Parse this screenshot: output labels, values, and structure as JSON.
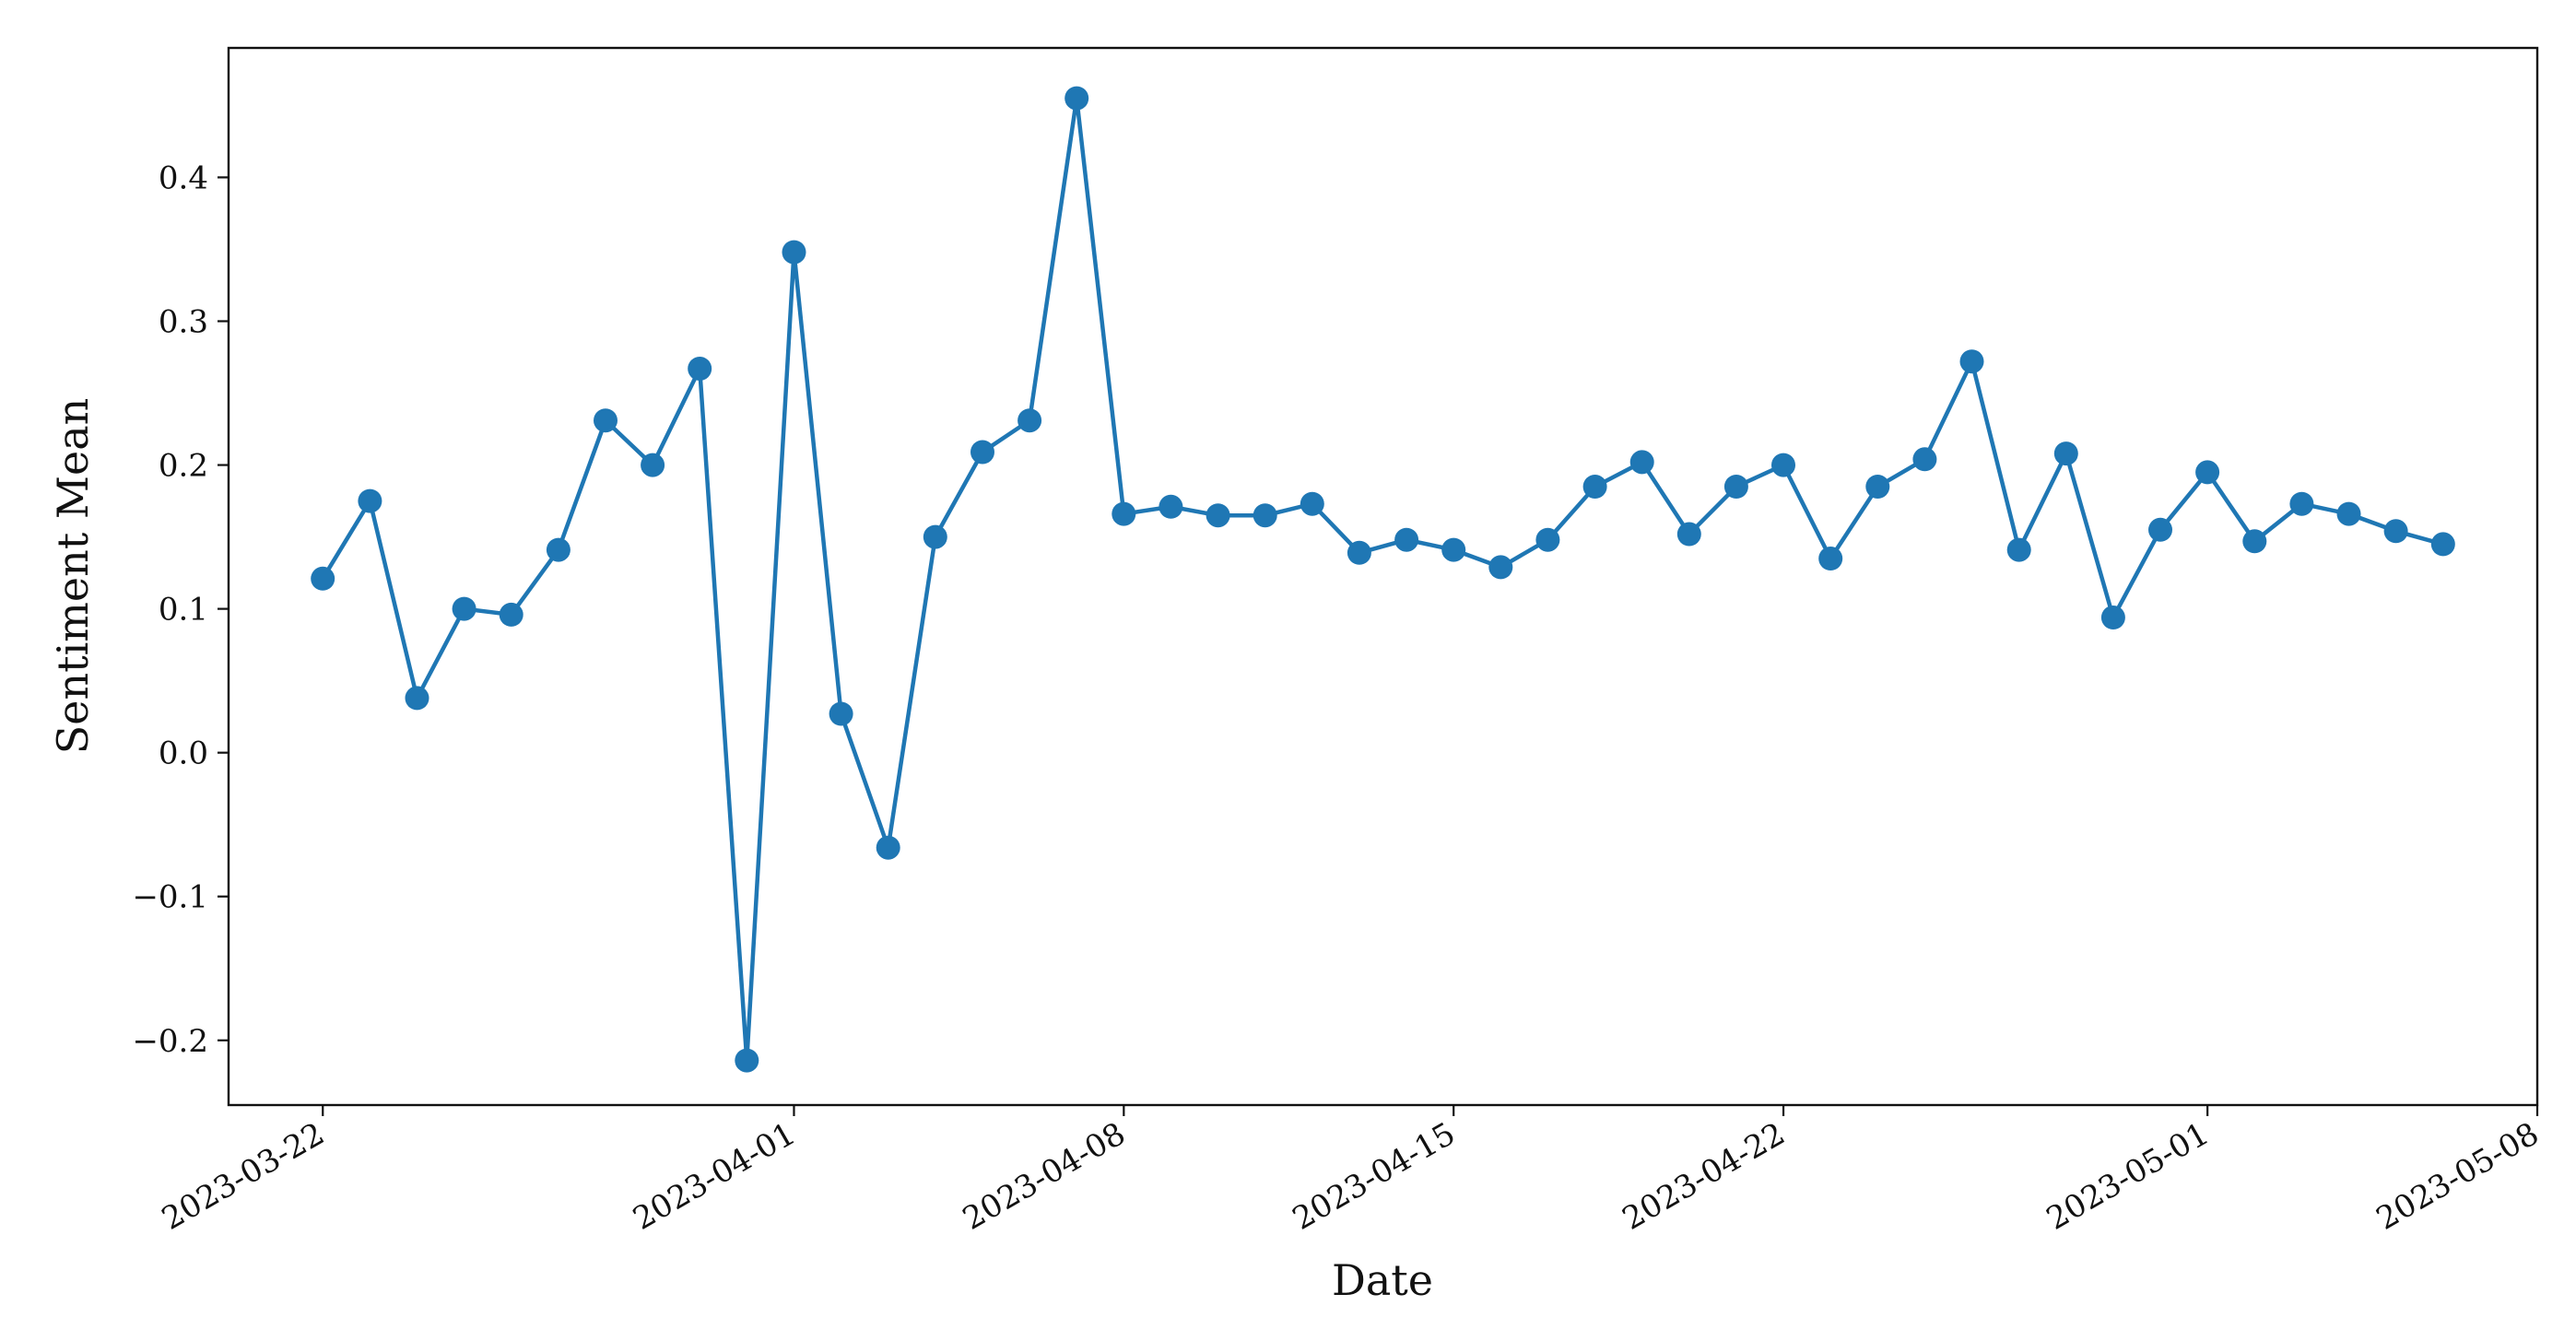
{
  "chart_data": {
    "type": "line",
    "title": "",
    "xlabel": "Date",
    "ylabel": "Sentiment Mean",
    "color": "#1f77b4",
    "marker": "circle",
    "grid": false,
    "legend": "none",
    "xlim": [
      "2023-03-20",
      "2023-05-08"
    ],
    "ylim": [
      -0.245,
      0.49
    ],
    "x_ticks": [
      "2023-03-22",
      "2023-04-01",
      "2023-04-08",
      "2023-04-15",
      "2023-04-22",
      "2023-05-01",
      "2023-05-08"
    ],
    "y_ticks": [
      -0.2,
      -0.1,
      0.0,
      0.1,
      0.2,
      0.3,
      0.4
    ],
    "y_tick_labels": [
      "−0.2",
      "−0.1",
      "0.0",
      "0.1",
      "0.2",
      "0.3",
      "0.4"
    ],
    "series": [
      {
        "x": [
          "2023-03-22",
          "2023-03-23",
          "2023-03-24",
          "2023-03-25",
          "2023-03-26",
          "2023-03-27",
          "2023-03-28",
          "2023-03-29",
          "2023-03-30",
          "2023-03-31",
          "2023-04-01",
          "2023-04-02",
          "2023-04-03",
          "2023-04-04",
          "2023-04-05",
          "2023-04-06",
          "2023-04-07",
          "2023-04-08",
          "2023-04-09",
          "2023-04-10",
          "2023-04-11",
          "2023-04-12",
          "2023-04-13",
          "2023-04-14",
          "2023-04-15",
          "2023-04-16",
          "2023-04-17",
          "2023-04-18",
          "2023-04-19",
          "2023-04-20",
          "2023-04-21",
          "2023-04-22",
          "2023-04-23",
          "2023-04-24",
          "2023-04-25",
          "2023-04-26",
          "2023-04-27",
          "2023-04-28",
          "2023-04-29",
          "2023-04-30",
          "2023-05-01",
          "2023-05-02",
          "2023-05-03",
          "2023-05-04",
          "2023-05-05",
          "2023-05-06"
        ],
        "y": [
          0.121,
          0.175,
          0.038,
          0.1,
          0.096,
          0.141,
          0.231,
          0.2,
          0.267,
          -0.214,
          0.348,
          0.027,
          -0.066,
          0.15,
          0.209,
          0.231,
          0.455,
          0.166,
          0.171,
          0.165,
          0.165,
          0.173,
          0.139,
          0.148,
          0.141,
          0.129,
          0.148,
          0.185,
          0.202,
          0.152,
          0.185,
          0.2,
          0.135,
          0.185,
          0.204,
          0.272,
          0.141,
          0.208,
          0.094,
          0.155,
          0.195,
          0.147,
          0.173,
          0.166,
          0.154,
          0.145
        ]
      }
    ]
  }
}
